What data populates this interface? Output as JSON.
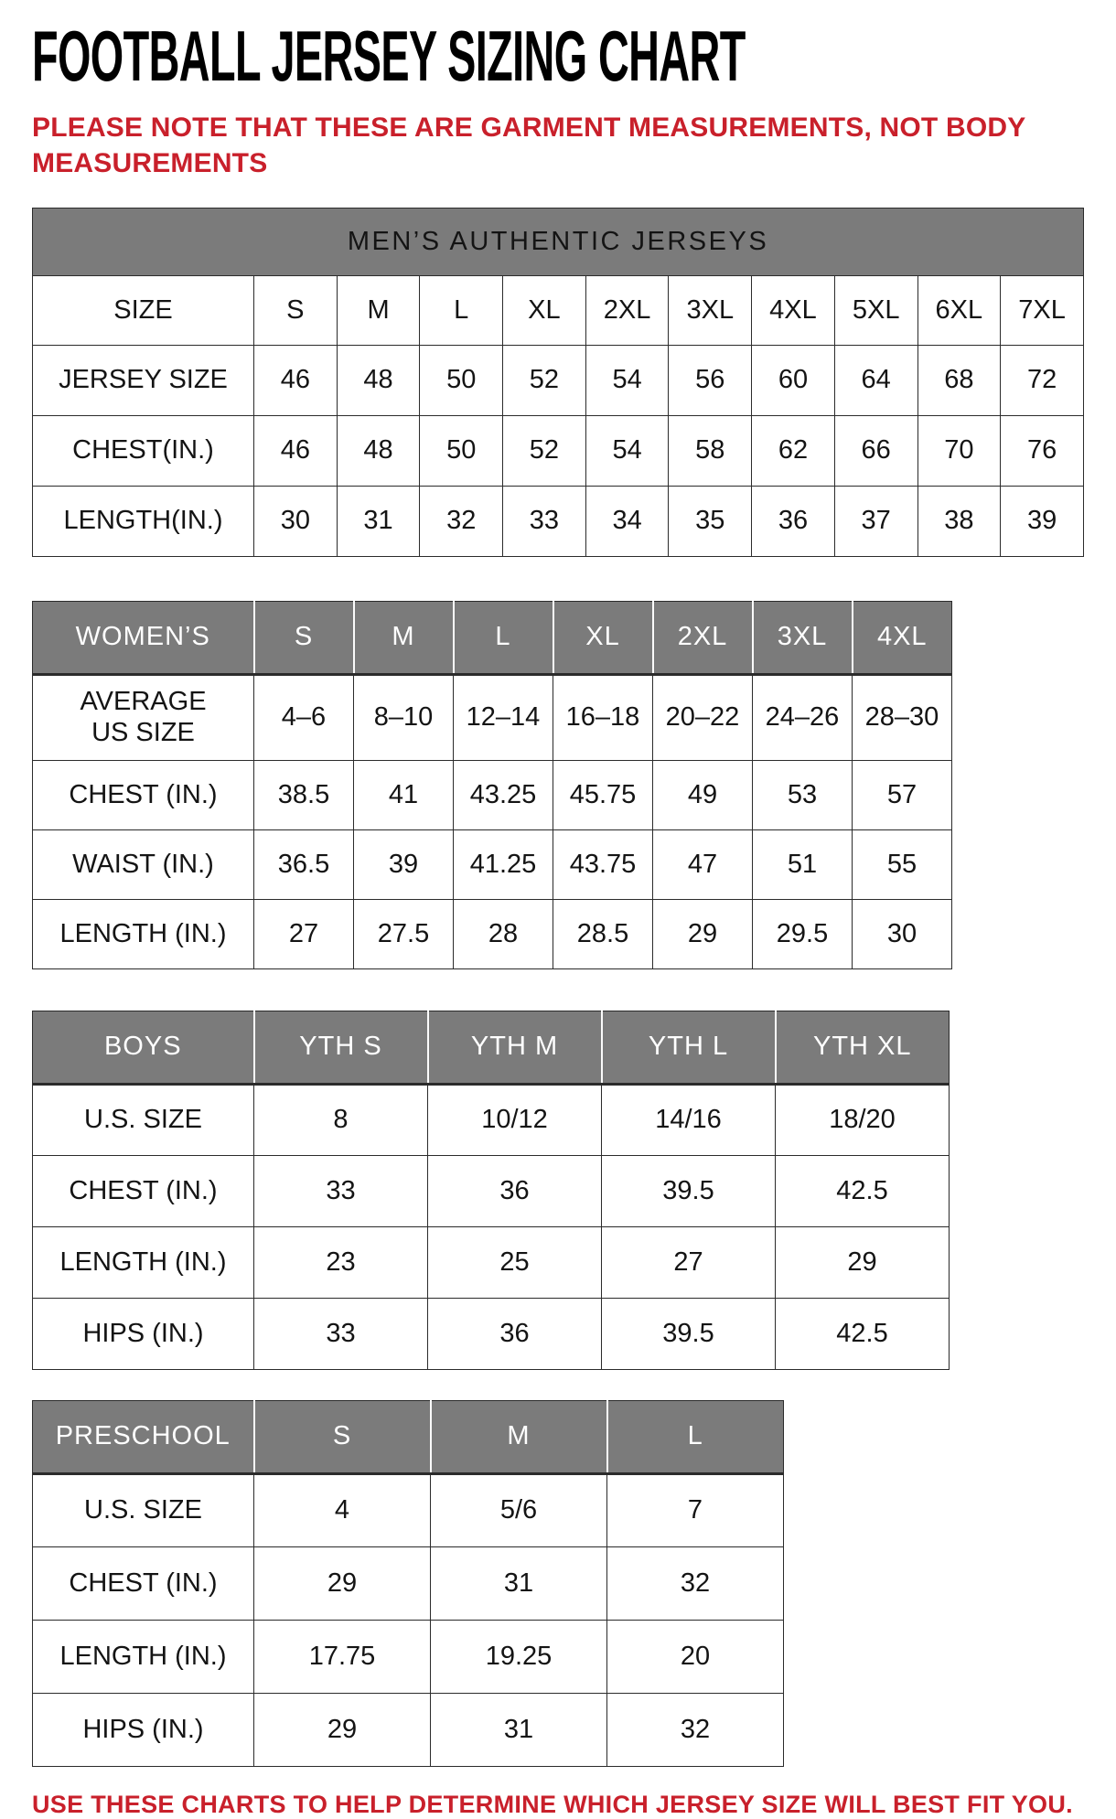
{
  "page": {
    "title": "FOOTBALL JERSEY SIZING CHART",
    "note": "PLEASE NOTE THAT THESE ARE GARMENT MEASUREMENTS, NOT BODY MEASUREMENTS",
    "footer": "USE THESE CHARTS TO HELP DETERMINE WHICH JERSEY SIZE WILL BEST FIT YOU.",
    "colors": {
      "accent_red": "#c9202b",
      "header_gray": "#7b7b7b",
      "text_black": "#141414",
      "border": "#2b2b2b"
    }
  },
  "tables": [
    {
      "id": "mens",
      "banner": "MEN’S AUTHENTIC JERSEYS",
      "header_label": "SIZE",
      "columns": [
        "S",
        "M",
        "L",
        "XL",
        "2XL",
        "3XL",
        "4XL",
        "5XL",
        "6XL",
        "7XL"
      ],
      "rows": [
        {
          "label": "JERSEY SIZE",
          "values": [
            "46",
            "48",
            "50",
            "52",
            "54",
            "56",
            "60",
            "64",
            "68",
            "72"
          ]
        },
        {
          "label": "CHEST(IN.)",
          "values": [
            "46",
            "48",
            "50",
            "52",
            "54",
            "58",
            "62",
            "66",
            "70",
            "76"
          ]
        },
        {
          "label": "LENGTH(IN.)",
          "values": [
            "30",
            "31",
            "32",
            "33",
            "34",
            "35",
            "36",
            "37",
            "38",
            "39"
          ]
        }
      ]
    },
    {
      "id": "womens",
      "header_label": "WOMEN’S",
      "columns": [
        "S",
        "M",
        "L",
        "XL",
        "2XL",
        "3XL",
        "4XL"
      ],
      "rows": [
        {
          "label": "AVERAGE\nUS SIZE",
          "values": [
            "4–6",
            "8–10",
            "12–14",
            "16–18",
            "20–22",
            "24–26",
            "28–30"
          ]
        },
        {
          "label": "CHEST (IN.)",
          "values": [
            "38.5",
            "41",
            "43.25",
            "45.75",
            "49",
            "53",
            "57"
          ]
        },
        {
          "label": "WAIST (IN.)",
          "values": [
            "36.5",
            "39",
            "41.25",
            "43.75",
            "47",
            "51",
            "55"
          ]
        },
        {
          "label": "LENGTH (IN.)",
          "values": [
            "27",
            "27.5",
            "28",
            "28.5",
            "29",
            "29.5",
            "30"
          ]
        }
      ]
    },
    {
      "id": "boys",
      "header_label": "BOYS",
      "columns": [
        "YTH S",
        "YTH M",
        "YTH L",
        "YTH XL"
      ],
      "rows": [
        {
          "label": "U.S. SIZE",
          "values": [
            "8",
            "10/12",
            "14/16",
            "18/20"
          ]
        },
        {
          "label": "CHEST (IN.)",
          "values": [
            "33",
            "36",
            "39.5",
            "42.5"
          ]
        },
        {
          "label": "LENGTH (IN.)",
          "values": [
            "23",
            "25",
            "27",
            "29"
          ]
        },
        {
          "label": "HIPS (IN.)",
          "values": [
            "33",
            "36",
            "39.5",
            "42.5"
          ]
        }
      ]
    },
    {
      "id": "preschool",
      "header_label": "PRESCHOOL",
      "columns": [
        "S",
        "M",
        "L"
      ],
      "rows": [
        {
          "label": "U.S. SIZE",
          "values": [
            "4",
            "5/6",
            "7"
          ]
        },
        {
          "label": "CHEST (IN.)",
          "values": [
            "29",
            "31",
            "32"
          ]
        },
        {
          "label": "LENGTH (IN.)",
          "values": [
            "17.75",
            "19.25",
            "20"
          ]
        },
        {
          "label": "HIPS (IN.)",
          "values": [
            "29",
            "31",
            "32"
          ]
        }
      ]
    }
  ]
}
